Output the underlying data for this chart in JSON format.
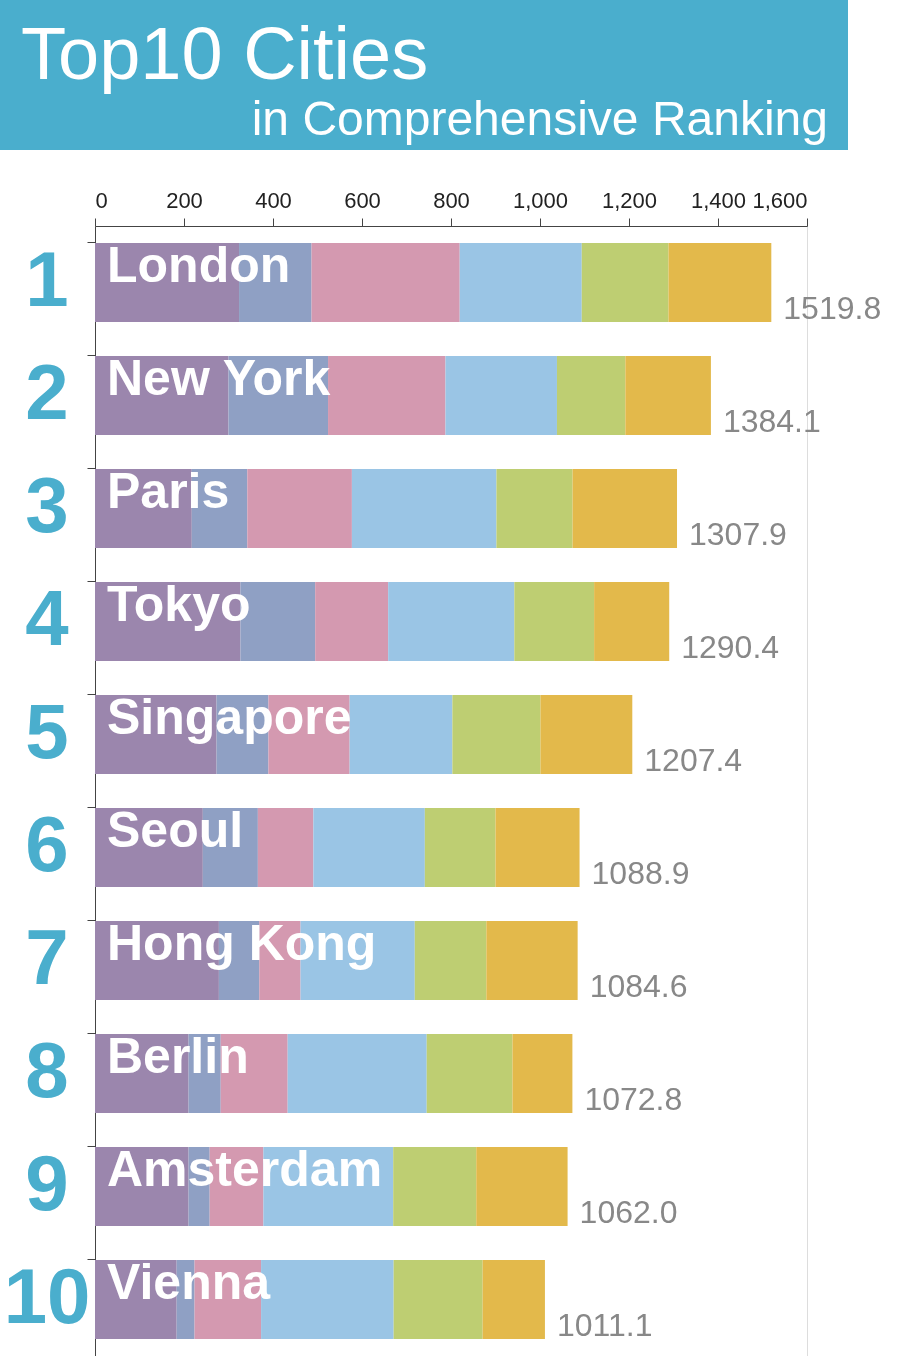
{
  "chart_data": {
    "type": "bar",
    "orientation": "horizontal",
    "stacked": true,
    "title": "Top10 Cities",
    "subtitle": "in Comprehensive Ranking",
    "categories": [
      "London",
      "New York",
      "Paris",
      "Tokyo",
      "Singapore",
      "Seoul",
      "Hong Kong",
      "Berlin",
      "Amsterdam",
      "Vienna"
    ],
    "series": [
      {
        "color": "#9b86ad",
        "values": [
          323.7,
          300.0,
          217.5,
          326.8,
          273.2,
          242.3,
          278.4,
          210.3,
          210.3,
          183.5
        ]
      },
      {
        "color": "#8fa0c4",
        "values": [
          162.9,
          223.7,
          124.8,
          168.0,
          116.5,
          123.7,
          90.7,
          72.2,
          47.4,
          40.2
        ]
      },
      {
        "color": "#d499b0",
        "values": [
          333.0,
          263.9,
          235.0,
          164.0,
          182.5,
          124.7,
          92.8,
          150.5,
          120.7,
          149.5
        ]
      },
      {
        "color": "#9ac5e5",
        "values": [
          274.2,
          250.5,
          324.8,
          283.5,
          230.9,
          250.5,
          256.7,
          312.4,
          291.7,
          297.9
        ]
      },
      {
        "color": "#bece72",
        "values": [
          194.9,
          153.7,
          171.1,
          179.3,
          197.9,
          158.8,
          160.8,
          192.7,
          186.6,
          200.0
        ]
      },
      {
        "color": "#e3b94b",
        "values": [
          231.1,
          192.3,
          234.7,
          168.8,
          206.4,
          188.9,
          205.2,
          134.7,
          205.3,
          140.0
        ]
      }
    ],
    "totals": [
      "1519.8",
      "1384.1",
      "1307.9",
      "1290.4",
      "1207.4",
      "1088.9",
      "1084.6",
      "1072.8",
      "1062.0",
      "1011.1"
    ],
    "xlim": [
      0,
      1600
    ],
    "xticks": [
      0,
      200,
      400,
      600,
      800,
      {
        "value": 1000,
        "label": "1,000"
      },
      {
        "value": 1200,
        "label": "1,200"
      },
      {
        "value": 1400,
        "label": "1,400"
      },
      {
        "value": 1600,
        "label": "1,600"
      }
    ],
    "tick_labels": "x",
    "grid": false,
    "legend": false,
    "annotations": [
      "1",
      "2",
      "3",
      "4",
      "5",
      "6",
      "7",
      "8",
      "9",
      "10"
    ]
  }
}
